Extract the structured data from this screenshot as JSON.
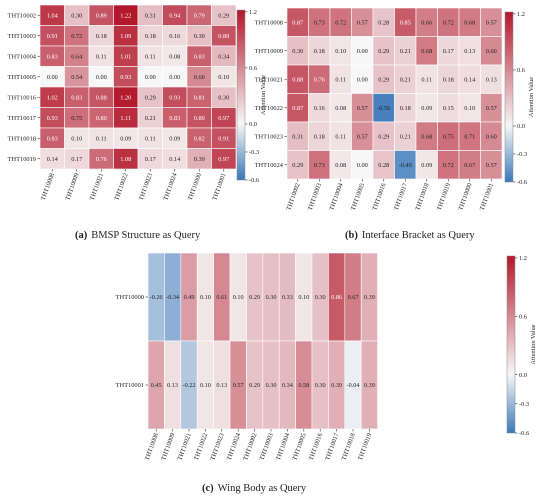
{
  "colors": {
    "scale_low": "#3a78b8",
    "scale_mid": "#f7f7f7",
    "scale_high": "#b2182b"
  },
  "chart_data": [
    {
      "id": "a",
      "type": "heatmap",
      "caption_letter": "(a)",
      "caption_text": "BMSP Structure as Query",
      "rows": [
        "THT10002",
        "THT10003",
        "THT10004",
        "THT10005",
        "THT10016",
        "THT10017",
        "THT10018",
        "THT10019"
      ],
      "cols": [
        "THT10008",
        "THT10009",
        "THT10021",
        "THT10022",
        "THT10023",
        "THT10024",
        "THT10000",
        "THT10001"
      ],
      "values": [
        [
          1.04,
          0.3,
          0.89,
          1.22,
          0.31,
          0.94,
          0.79,
          0.29
        ],
        [
          0.91,
          0.72,
          0.18,
          1.09,
          0.18,
          0.16,
          0.3,
          0.89
        ],
        [
          0.83,
          0.64,
          0.11,
          1.01,
          0.11,
          0.08,
          0.83,
          0.34
        ],
        [
          0.0,
          0.54,
          0.0,
          0.93,
          0.0,
          0.0,
          0.6,
          0.1
        ],
        [
          1.02,
          0.83,
          0.88,
          1.2,
          0.29,
          0.93,
          0.81,
          0.3
        ],
        [
          0.93,
          0.75,
          0.8,
          1.11,
          0.21,
          0.83,
          0.89,
          0.97
        ],
        [
          0.83,
          0.1,
          0.11,
          0.09,
          0.11,
          0.09,
          0.82,
          0.91
        ],
        [
          0.14,
          0.17,
          0.76,
          1.08,
          0.17,
          0.14,
          0.39,
          0.97
        ]
      ],
      "colorbar_label": "Attention Value",
      "colorbar_ticks": [
        "1.2",
        "0.6",
        "0.0",
        "-0.3",
        "-0.6"
      ],
      "vmin": -0.6,
      "vmax": 1.22
    },
    {
      "id": "b",
      "type": "heatmap",
      "caption_letter": "(b)",
      "caption_text": "Interface Bracket as Query",
      "rows": [
        "THT10008",
        "THT10009",
        "THT10021",
        "THT10022",
        "THT10023",
        "THT10024"
      ],
      "cols": [
        "THT10002",
        "THT10003",
        "THT10004",
        "THT10005",
        "THT10016",
        "THT10017",
        "THT10018",
        "THT10019",
        "THT10000",
        "THT10001"
      ],
      "values": [
        [
          0.87,
          0.73,
          0.72,
          0.57,
          0.28,
          0.85,
          0.66,
          0.72,
          0.68,
          0.57
        ],
        [
          0.3,
          0.18,
          0.1,
          0.0,
          0.29,
          0.21,
          0.68,
          0.17,
          0.13,
          0.6
        ],
        [
          0.88,
          0.76,
          0.11,
          0.0,
          0.29,
          0.21,
          0.11,
          0.18,
          0.14,
          0.13
        ],
        [
          0.87,
          0.16,
          0.08,
          0.57,
          -0.56,
          0.18,
          0.09,
          0.15,
          0.1,
          0.57
        ],
        [
          0.31,
          0.18,
          0.11,
          0.57,
          0.29,
          0.21,
          0.68,
          0.75,
          0.71,
          0.6
        ],
        [
          0.29,
          0.73,
          0.08,
          0.0,
          0.28,
          -0.49,
          0.09,
          0.72,
          0.67,
          0.57
        ]
      ],
      "colorbar_label": "Attention Value",
      "colorbar_ticks": [
        "1.2",
        "0.6",
        "0.0",
        "-0.3",
        "-0.6"
      ],
      "vmin": -0.6,
      "vmax": 1.22
    },
    {
      "id": "c",
      "type": "heatmap",
      "caption_letter": "(c)",
      "caption_text": "Wing Body as Query",
      "rows": [
        "THT10000",
        "THT10001"
      ],
      "cols": [
        "THT10008",
        "THT10009",
        "THT10021",
        "THT10022",
        "THT10023",
        "THT10024",
        "THT10002",
        "THT10003",
        "THT10004",
        "THT10005",
        "THT10016",
        "THT10017",
        "THT10018",
        "THT10019"
      ],
      "values": [
        [
          -0.26,
          -0.34,
          0.49,
          0.1,
          0.61,
          0.1,
          0.29,
          0.3,
          0.33,
          0.1,
          0.3,
          0.86,
          0.67,
          0.39
        ],
        [
          0.45,
          0.13,
          -0.22,
          0.1,
          0.13,
          0.57,
          0.29,
          0.3,
          0.34,
          0.58,
          0.3,
          0.39,
          -0.04,
          0.39
        ]
      ],
      "colorbar_label": "Attention Value",
      "colorbar_ticks": [
        "1.2",
        "0.6",
        "0.0",
        "-0.3",
        "-0.6"
      ],
      "vmin": -0.6,
      "vmax": 1.22
    }
  ]
}
